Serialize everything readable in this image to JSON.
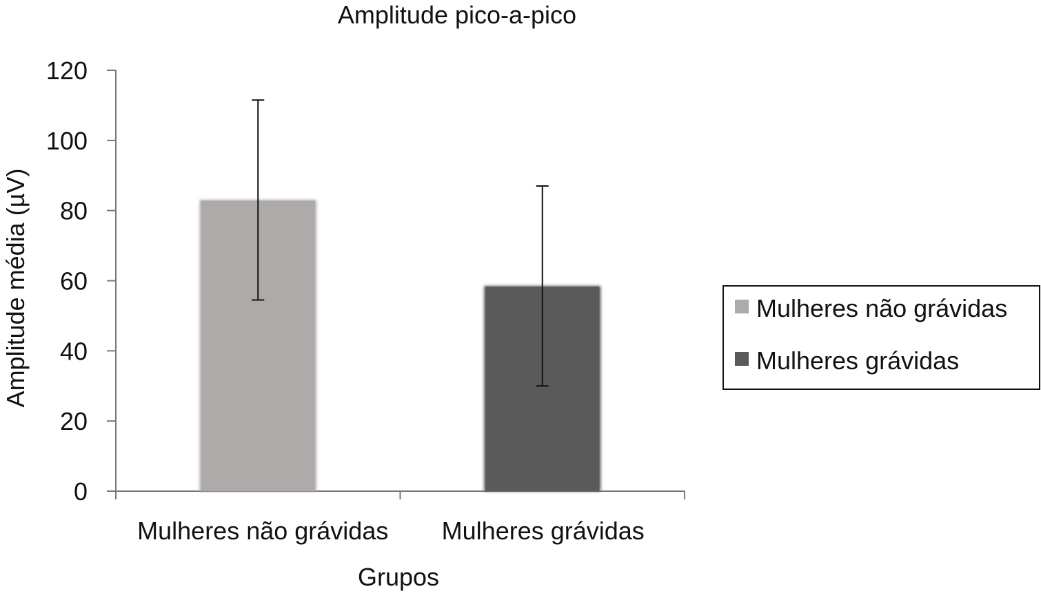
{
  "chart_data": {
    "type": "bar",
    "title": "Amplitude pico-a-pico",
    "xlabel": "Grupos",
    "ylabel": "Amplitude média  (µV)",
    "categories": [
      "Mulheres não grávidas",
      "Mulheres grávidas"
    ],
    "values": [
      83,
      58.5
    ],
    "error_low": [
      54.5,
      30
    ],
    "error_high": [
      111.5,
      87
    ],
    "colors": [
      "#adaaa9",
      "#5a5a5a"
    ],
    "yticks": [
      "0",
      "20",
      "40",
      "60",
      "80",
      "100",
      "120"
    ],
    "ylim": [
      0,
      120
    ],
    "grid": false,
    "legend": {
      "position": "right",
      "entries": [
        "Mulheres não grávidas",
        "Mulheres grávidas"
      ]
    }
  }
}
